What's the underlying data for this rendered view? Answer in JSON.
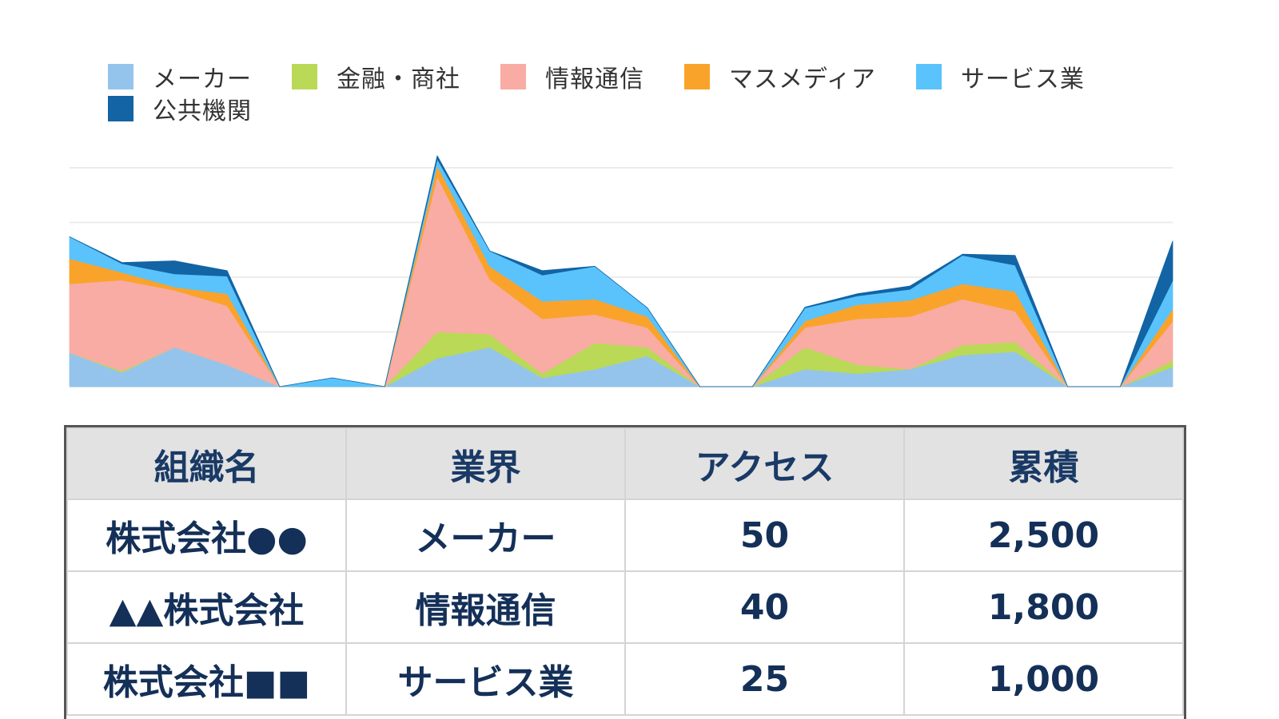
{
  "chart_data": {
    "type": "area",
    "stacked": true,
    "legend": [
      "メーカー",
      "金融・商社",
      "情報通信",
      "マスメディア",
      "サービス業",
      "公共機関"
    ],
    "x": [
      0,
      1,
      2,
      3,
      4,
      5,
      6,
      7,
      8,
      9,
      10,
      11,
      12,
      13,
      14,
      15,
      16,
      17,
      18,
      19,
      20,
      21
    ],
    "series": [
      {
        "name": "メーカー",
        "color": "#94c4ec",
        "values": [
          15.5,
          6.5,
          18,
          10,
          0,
          0,
          0,
          13,
          18,
          4,
          8,
          14,
          0,
          0,
          8,
          6,
          8,
          14.5,
          16,
          0,
          0,
          9
        ]
      },
      {
        "name": "金融・商社",
        "color": "#b9d957",
        "values": [
          0,
          0.7,
          0,
          0,
          0,
          0,
          0,
          12,
          6,
          2,
          12,
          4,
          0,
          0,
          10,
          4,
          0,
          4.5,
          4.5,
          0,
          0,
          3
        ]
      },
      {
        "name": "情報通信",
        "color": "#f8aca4",
        "values": [
          31.5,
          41.5,
          26,
          27,
          0,
          0,
          0,
          71,
          25,
          25,
          13,
          9,
          0,
          0,
          9,
          21,
          24,
          21,
          14,
          0,
          0,
          17.8
        ]
      },
      {
        "name": "マスメディア",
        "color": "#faa32a",
        "values": [
          11.5,
          3.5,
          1.5,
          5.5,
          0,
          0,
          0,
          5,
          6,
          8,
          7,
          5,
          0,
          0,
          3,
          6.5,
          7.5,
          7,
          9,
          0,
          0,
          5.7
        ]
      },
      {
        "name": "サービス業",
        "color": "#5ac3fb",
        "values": [
          10,
          4,
          6,
          8,
          0,
          4,
          0,
          3,
          7,
          12,
          15,
          4,
          0,
          0,
          6,
          4,
          5,
          13,
          12,
          0,
          0,
          13
        ]
      },
      {
        "name": "公共機関",
        "color": "#1264a4",
        "values": [
          0,
          0.5,
          6,
          2.5,
          0,
          0,
          0,
          1.5,
          0,
          2,
          0,
          0,
          0,
          0,
          0.3,
          1,
          1.5,
          0.5,
          4.5,
          0,
          0,
          18
        ]
      }
    ],
    "ylim": [
      0,
      100
    ],
    "grid": true,
    "gridlines": [
      0,
      25,
      50,
      75,
      100
    ]
  },
  "table": {
    "headers": [
      "組織名",
      "業界",
      "アクセス",
      "累積"
    ],
    "rows": [
      [
        "株式会社●●",
        "メーカー",
        "50",
        "2,500"
      ],
      [
        "▲▲株式会社",
        "情報通信",
        "40",
        "1,800"
      ],
      [
        "株式会社■■",
        "サービス業",
        "25",
        "1,000"
      ]
    ]
  }
}
